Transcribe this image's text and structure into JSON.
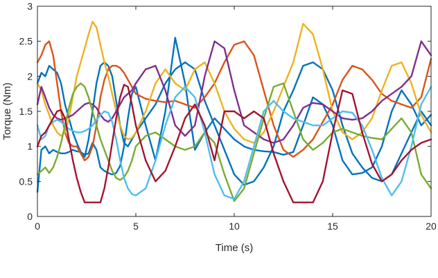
{
  "chart_data": {
    "type": "line",
    "xlabel": "Time (s)",
    "ylabel": "Torque (Nm)",
    "xlim": [
      0,
      20
    ],
    "ylim": [
      0,
      3
    ],
    "xticks": [
      "0",
      "5",
      "10",
      "15",
      "20"
    ],
    "yticks": [
      "0",
      "0.5",
      "1",
      "1.5",
      "2",
      "2.5",
      "3"
    ],
    "grid": false,
    "box": true,
    "series": [
      {
        "color": "#0072BD",
        "x": [
          0,
          0.2,
          0.4,
          0.6,
          0.8,
          1.0,
          1.2,
          1.4,
          1.6,
          1.8,
          2.0,
          2.2,
          2.4,
          2.6,
          2.8,
          3.0,
          3.2,
          3.4,
          3.6,
          3.8,
          4.0,
          4.2,
          4.4,
          4.6,
          4.8,
          5.0,
          5.5,
          6.0,
          6.5,
          7.0,
          7.5,
          8.0,
          8.5,
          9.0,
          9.5,
          10.0,
          10.5,
          11.0,
          11.5,
          12.0,
          12.5,
          13.0,
          13.5,
          14.0,
          14.5,
          15.0,
          15.5,
          16.0,
          16.5,
          17.0,
          17.5,
          18.0,
          18.5,
          19.0,
          19.5,
          20.0
        ],
        "y": [
          0.35,
          0.95,
          1.0,
          0.9,
          0.95,
          0.92,
          0.9,
          0.9,
          0.92,
          0.95,
          0.93,
          0.92,
          0.88,
          0.9,
          1.05,
          0.95,
          0.7,
          0.65,
          0.62,
          0.6,
          0.62,
          0.72,
          1.0,
          1.4,
          1.75,
          1.85,
          1.3,
          0.8,
          1.5,
          2.55,
          1.9,
          0.95,
          1.2,
          1.4,
          1.25,
          1.1,
          1.0,
          0.95,
          0.93,
          0.92,
          0.88,
          0.92,
          1.3,
          1.7,
          1.6,
          1.3,
          0.8,
          0.6,
          0.62,
          0.7,
          1.0,
          1.5,
          1.8,
          1.6,
          1.3,
          1.45
        ]
      },
      {
        "color": "#0072BD",
        "x": [
          0,
          0.2,
          0.4,
          0.6,
          0.8,
          1.0,
          1.2,
          1.4,
          1.6,
          1.8,
          2.0,
          2.2,
          2.4,
          2.6,
          2.8,
          3.0,
          3.2,
          3.4,
          3.6,
          3.8,
          4.0,
          4.2,
          4.4,
          4.6,
          4.8,
          5.0,
          5.5,
          6.0,
          6.5,
          7.0,
          7.5,
          8.0,
          8.5,
          9.0,
          9.5,
          10.0,
          10.5,
          11.0,
          11.5,
          12.0,
          12.5,
          13.0,
          13.5,
          14.0,
          14.5,
          15.0,
          15.5,
          16.0,
          16.5,
          17.0,
          17.5,
          18.0,
          18.5,
          19.0,
          19.5,
          20.0
        ],
        "y": [
          1.9,
          2.05,
          2.0,
          2.15,
          2.1,
          2.05,
          1.9,
          1.6,
          1.4,
          1.2,
          1.05,
          0.92,
          0.85,
          1.1,
          1.5,
          1.9,
          2.15,
          2.2,
          2.15,
          2.0,
          1.65,
          1.3,
          1.05,
          1.0,
          1.1,
          1.2,
          1.4,
          1.6,
          1.9,
          2.1,
          2.2,
          2.1,
          1.65,
          1.3,
          0.95,
          0.6,
          0.45,
          0.5,
          0.7,
          1.0,
          1.5,
          1.8,
          2.15,
          2.2,
          2.1,
          1.8,
          1.3,
          0.9,
          0.7,
          0.55,
          0.5,
          0.6,
          0.9,
          1.2,
          1.5,
          1.3
        ]
      },
      {
        "color": "#D95319",
        "x": [
          0,
          0.2,
          0.4,
          0.6,
          0.8,
          1.0,
          1.2,
          1.4,
          1.6,
          1.8,
          2.0,
          2.2,
          2.4,
          2.6,
          2.8,
          3.0,
          3.2,
          3.4,
          3.6,
          3.8,
          4.0,
          4.2,
          4.4,
          4.6,
          4.8,
          5.0,
          5.5,
          6.0,
          6.5,
          7.0,
          7.5,
          8.0,
          8.5,
          9.0,
          9.5,
          10.0,
          10.5,
          11.0,
          11.5,
          12.0,
          12.5,
          13.0,
          13.5,
          14.0,
          14.5,
          15.0,
          15.5,
          16.0,
          16.5,
          17.0,
          17.5,
          18.0,
          18.5,
          19.0,
          19.5,
          20.0
        ],
        "y": [
          2.2,
          2.3,
          2.45,
          2.5,
          2.3,
          1.9,
          1.5,
          1.2,
          1.05,
          1.0,
          1.0,
          0.9,
          0.8,
          0.85,
          1.0,
          1.3,
          1.7,
          1.95,
          2.1,
          2.15,
          2.15,
          2.12,
          2.05,
          1.95,
          1.85,
          1.75,
          1.68,
          1.65,
          1.63,
          1.65,
          1.6,
          1.55,
          1.7,
          1.9,
          2.2,
          2.45,
          2.5,
          2.3,
          1.8,
          1.3,
          0.95,
          0.85,
          0.95,
          1.1,
          1.35,
          1.6,
          1.95,
          2.15,
          2.1,
          1.95,
          1.75,
          1.65,
          1.6,
          1.55,
          1.7,
          2.25
        ]
      },
      {
        "color": "#EDB120",
        "x": [
          0,
          0.2,
          0.4,
          0.6,
          0.8,
          1.0,
          1.2,
          1.4,
          1.6,
          1.8,
          2.0,
          2.2,
          2.4,
          2.6,
          2.8,
          3.0,
          3.2,
          3.4,
          3.6,
          3.8,
          4.0,
          4.2,
          4.4,
          4.6,
          4.8,
          5.0,
          5.5,
          6.0,
          6.5,
          7.0,
          7.5,
          8.0,
          8.5,
          9.0,
          9.5,
          10.0,
          10.5,
          11.0,
          11.5,
          12.0,
          12.5,
          13.0,
          13.5,
          14.0,
          14.5,
          15.0,
          15.5,
          16.0,
          16.5,
          17.0,
          17.5,
          18.0,
          18.5,
          19.0,
          19.5,
          20.0
        ],
        "y": [
          1.9,
          1.8,
          1.6,
          1.45,
          1.3,
          1.2,
          1.15,
          1.2,
          1.4,
          1.7,
          2.0,
          2.2,
          2.4,
          2.6,
          2.78,
          2.7,
          2.45,
          2.2,
          2.0,
          1.75,
          1.5,
          1.3,
          1.15,
          1.1,
          1.12,
          1.2,
          1.5,
          1.9,
          2.1,
          1.9,
          1.8,
          2.1,
          2.2,
          1.9,
          1.5,
          1.25,
          1.1,
          1.05,
          1.2,
          1.5,
          1.85,
          2.2,
          2.75,
          2.6,
          2.1,
          1.5,
          1.2,
          1.1,
          1.2,
          1.4,
          1.8,
          2.15,
          2.2,
          1.9,
          1.45,
          1.2
        ]
      },
      {
        "color": "#7E2F8E",
        "x": [
          0,
          0.2,
          0.4,
          0.6,
          0.8,
          1.0,
          1.2,
          1.4,
          1.6,
          1.8,
          2.0,
          2.2,
          2.4,
          2.6,
          2.8,
          3.0,
          3.2,
          3.4,
          3.6,
          3.8,
          4.0,
          4.2,
          4.4,
          4.6,
          4.8,
          5.0,
          5.5,
          6.0,
          6.5,
          7.0,
          7.5,
          8.0,
          8.5,
          9.0,
          9.5,
          10.0,
          10.5,
          11.0,
          11.5,
          12.0,
          12.5,
          13.0,
          13.5,
          14.0,
          14.5,
          15.0,
          15.5,
          16.0,
          16.5,
          17.0,
          17.5,
          18.0,
          18.5,
          19.0,
          19.5,
          20.0
        ],
        "y": [
          1.6,
          1.85,
          1.7,
          1.55,
          1.45,
          1.4,
          1.38,
          1.4,
          1.42,
          1.45,
          1.5,
          1.55,
          1.6,
          1.62,
          1.6,
          1.55,
          1.45,
          1.38,
          1.35,
          1.4,
          1.5,
          1.6,
          1.7,
          1.75,
          1.8,
          1.9,
          2.1,
          2.15,
          1.8,
          1.3,
          1.15,
          1.3,
          2.0,
          2.5,
          2.4,
          1.8,
          1.3,
          1.2,
          1.1,
          1.05,
          1.1,
          1.3,
          1.55,
          1.62,
          1.6,
          1.5,
          1.4,
          1.38,
          1.4,
          1.5,
          1.65,
          1.75,
          1.85,
          2.0,
          2.5,
          2.3
        ]
      },
      {
        "color": "#77AC30",
        "x": [
          0,
          0.2,
          0.4,
          0.6,
          0.8,
          1.0,
          1.2,
          1.4,
          1.6,
          1.8,
          2.0,
          2.2,
          2.4,
          2.6,
          2.8,
          3.0,
          3.2,
          3.4,
          3.6,
          3.8,
          4.0,
          4.2,
          4.4,
          4.6,
          4.8,
          5.0,
          5.5,
          6.0,
          6.5,
          7.0,
          7.5,
          8.0,
          8.5,
          9.0,
          9.5,
          10.0,
          10.5,
          11.0,
          11.5,
          12.0,
          12.5,
          13.0,
          13.5,
          14.0,
          14.5,
          15.0,
          15.5,
          16.0,
          16.5,
          17.0,
          17.5,
          18.0,
          18.5,
          19.0,
          19.5,
          20.0
        ],
        "y": [
          0.6,
          0.65,
          0.7,
          0.62,
          0.7,
          0.85,
          1.05,
          1.3,
          1.55,
          1.75,
          1.85,
          1.9,
          1.85,
          1.7,
          1.5,
          1.3,
          1.1,
          0.95,
          0.8,
          0.65,
          0.55,
          0.52,
          0.56,
          0.65,
          0.8,
          1.0,
          1.15,
          1.2,
          1.1,
          1.0,
          0.95,
          1.0,
          1.2,
          1.05,
          0.6,
          0.22,
          0.4,
          0.9,
          1.4,
          1.85,
          1.9,
          1.5,
          1.1,
          0.95,
          1.05,
          1.2,
          1.25,
          1.2,
          1.15,
          1.12,
          1.1,
          1.25,
          1.4,
          1.2,
          0.6,
          0.4
        ]
      },
      {
        "color": "#4DBEEE",
        "x": [
          0,
          0.2,
          0.4,
          0.6,
          0.8,
          1.0,
          1.2,
          1.4,
          1.6,
          1.8,
          2.0,
          2.2,
          2.4,
          2.6,
          2.8,
          3.0,
          3.2,
          3.4,
          3.6,
          3.8,
          4.0,
          4.2,
          4.4,
          4.6,
          4.8,
          5.0,
          5.5,
          6.0,
          6.5,
          7.0,
          7.5,
          8.0,
          8.5,
          9.0,
          9.5,
          10.0,
          10.5,
          11.0,
          11.5,
          12.0,
          12.5,
          13.0,
          13.5,
          14.0,
          14.5,
          15.0,
          15.5,
          16.0,
          16.5,
          17.0,
          17.5,
          18.0,
          18.5,
          19.0,
          19.5,
          20.0
        ],
        "y": [
          1.3,
          1.1,
          1.15,
          1.3,
          1.35,
          1.38,
          1.35,
          1.3,
          1.25,
          1.22,
          1.2,
          1.2,
          1.22,
          1.25,
          1.3,
          1.38,
          1.45,
          1.5,
          1.48,
          1.35,
          1.1,
          0.8,
          0.55,
          0.4,
          0.32,
          0.3,
          0.4,
          0.8,
          1.3,
          1.7,
          1.85,
          1.7,
          1.2,
          0.6,
          0.3,
          0.25,
          0.5,
          1.0,
          1.5,
          1.65,
          1.5,
          1.4,
          1.35,
          1.3,
          1.3,
          1.4,
          1.5,
          1.48,
          1.3,
          0.95,
          0.55,
          0.3,
          0.5,
          1.0,
          1.6,
          1.85
        ]
      },
      {
        "color": "#A2142F",
        "x": [
          0,
          0.2,
          0.4,
          0.6,
          0.8,
          1.0,
          1.2,
          1.4,
          1.6,
          1.8,
          2.0,
          2.2,
          2.4,
          2.6,
          2.8,
          3.0,
          3.2,
          3.4,
          3.6,
          3.8,
          4.0,
          4.2,
          4.4,
          4.6,
          4.8,
          5.0,
          5.5,
          6.0,
          6.5,
          7.0,
          7.5,
          8.0,
          8.5,
          9.0,
          9.5,
          10.0,
          10.5,
          11.0,
          11.5,
          12.0,
          12.5,
          13.0,
          13.5,
          14.0,
          14.5,
          15.0,
          15.5,
          16.0,
          16.5,
          17.0,
          17.5,
          18.0,
          18.5,
          19.0,
          19.5,
          20.0
        ],
        "y": [
          1.0,
          1.15,
          1.2,
          1.3,
          1.4,
          1.5,
          1.52,
          1.4,
          1.1,
          0.8,
          0.55,
          0.35,
          0.2,
          0.2,
          0.2,
          0.2,
          0.2,
          0.4,
          0.7,
          1.05,
          1.4,
          1.7,
          1.88,
          1.85,
          1.6,
          1.3,
          0.8,
          0.5,
          0.65,
          1.0,
          1.4,
          1.6,
          1.3,
          0.8,
          1.5,
          1.5,
          1.4,
          1.5,
          1.4,
          0.9,
          0.5,
          0.2,
          0.2,
          0.2,
          0.5,
          1.2,
          1.8,
          1.75,
          1.2,
          0.75,
          0.5,
          0.6,
          0.8,
          0.95,
          1.05,
          1.1
        ]
      }
    ]
  }
}
